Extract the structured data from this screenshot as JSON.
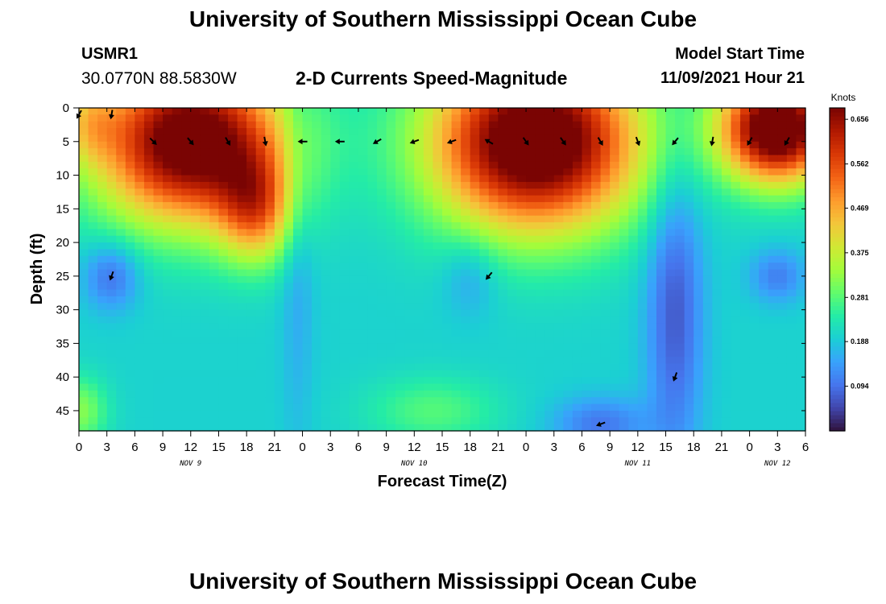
{
  "header": {
    "title": "University of Southern Mississippi Ocean Cube",
    "station": "USMR1",
    "coords": "30.0770N  88.5830W",
    "subtitle": "2-D Currents Speed-Magnitude",
    "model_start_label": "Model Start Time",
    "model_start_value": "11/09/2021 Hour 21"
  },
  "footer": {
    "title": "University of Southern Mississippi Ocean Cube"
  },
  "colors": {
    "ramp": [
      "#30123b",
      "#4145ab",
      "#4675ed",
      "#39a2fc",
      "#1bcfd4",
      "#24eca6",
      "#61fc6c",
      "#a4fc3b",
      "#d1e834",
      "#f3c63a",
      "#fe9b2d",
      "#f36315",
      "#d93806",
      "#b11901",
      "#7a0403"
    ],
    "arrow": "#000000"
  },
  "chart_data": {
    "type": "heatmap",
    "title": "2-D Currents Speed-Magnitude",
    "xlabel": "Forecast Time(Z)",
    "ylabel": "Depth (ft)",
    "x_tick_labels": [
      "0",
      "3",
      "6",
      "9",
      "12",
      "15",
      "18",
      "21",
      "0",
      "3",
      "6",
      "9",
      "12",
      "15",
      "18",
      "21",
      "0",
      "3",
      "6",
      "9",
      "12",
      "15",
      "18",
      "21",
      "0",
      "3",
      "6"
    ],
    "x_range_hours": [
      0,
      78
    ],
    "day_labels": [
      {
        "label": "NOV 9",
        "hour": 12
      },
      {
        "label": "NOV 10",
        "hour": 36
      },
      {
        "label": "NOV 11",
        "hour": 60
      },
      {
        "label": "NOV 12",
        "hour": 75
      }
    ],
    "y_tick_labels": [
      "0",
      "5",
      "10",
      "15",
      "20",
      "25",
      "30",
      "35",
      "40",
      "45"
    ],
    "y_range_ft": [
      0,
      48
    ],
    "colorbar": {
      "label": "Knots",
      "range": [
        0.0,
        0.68
      ],
      "ticks": [
        "0.656",
        "0.562",
        "0.469",
        "0.375",
        "0.281",
        "0.188",
        "0.094"
      ],
      "tick_values": [
        0.656,
        0.562,
        0.469,
        0.375,
        0.281,
        0.188,
        0.094
      ]
    },
    "speed_blobs": [
      {
        "hour": 12,
        "depth": 5,
        "hw": 10,
        "dh": 12,
        "amp": 0.55
      },
      {
        "hour": 19,
        "depth": 15,
        "hw": 4,
        "dh": 8,
        "amp": 0.25
      },
      {
        "hour": 49,
        "depth": 5,
        "hw": 11,
        "dh": 13,
        "amp": 0.58
      },
      {
        "hour": 75,
        "depth": 3,
        "hw": 6,
        "dh": 8,
        "amp": 0.58
      },
      {
        "hour": 38,
        "depth": 45,
        "hw": 7,
        "dh": 5,
        "amp": 0.08
      },
      {
        "hour": 0,
        "depth": 45,
        "hw": 3,
        "dh": 5,
        "amp": 0.12
      },
      {
        "hour": 1,
        "depth": 2,
        "hw": 3,
        "dh": 6,
        "amp": 0.12
      }
    ],
    "cold_spots": [
      {
        "hour": 3.5,
        "depth": 25,
        "hw": 3,
        "dh": 5,
        "amp": 0.11
      },
      {
        "hour": 64,
        "depth": 30,
        "hw": 3,
        "dh": 22,
        "amp": 0.13
      },
      {
        "hour": 56,
        "depth": 47,
        "hw": 5,
        "dh": 4,
        "amp": 0.1
      },
      {
        "hour": 75,
        "depth": 25,
        "hw": 3,
        "dh": 4,
        "amp": 0.09
      },
      {
        "hour": 23.5,
        "depth": 20,
        "hw": 1.8,
        "dh": 30,
        "amp": 0.05
      },
      {
        "hour": 42,
        "depth": 25,
        "hw": 3,
        "dh": 6,
        "amp": 0.06
      }
    ],
    "vectors": [
      {
        "hour": 0,
        "depth": 1,
        "dir_deg": 210
      },
      {
        "hour": 3.5,
        "depth": 1,
        "dir_deg": 190
      },
      {
        "hour": 8,
        "depth": 5,
        "dir_deg": 135
      },
      {
        "hour": 12,
        "depth": 5,
        "dir_deg": 140
      },
      {
        "hour": 16,
        "depth": 5,
        "dir_deg": 150
      },
      {
        "hour": 20,
        "depth": 5,
        "dir_deg": 170
      },
      {
        "hour": 24,
        "depth": 5,
        "dir_deg": 270
      },
      {
        "hour": 28,
        "depth": 5,
        "dir_deg": 270
      },
      {
        "hour": 32,
        "depth": 5,
        "dir_deg": 240
      },
      {
        "hour": 36,
        "depth": 5,
        "dir_deg": 250
      },
      {
        "hour": 40,
        "depth": 5,
        "dir_deg": 250
      },
      {
        "hour": 44,
        "depth": 5,
        "dir_deg": 300
      },
      {
        "hour": 48,
        "depth": 5,
        "dir_deg": 145
      },
      {
        "hour": 52,
        "depth": 5,
        "dir_deg": 145
      },
      {
        "hour": 56,
        "depth": 5,
        "dir_deg": 150
      },
      {
        "hour": 60,
        "depth": 5,
        "dir_deg": 160
      },
      {
        "hour": 64,
        "depth": 5,
        "dir_deg": 220
      },
      {
        "hour": 68,
        "depth": 5,
        "dir_deg": 190
      },
      {
        "hour": 72,
        "depth": 5,
        "dir_deg": 210
      },
      {
        "hour": 76,
        "depth": 5,
        "dir_deg": 210
      },
      {
        "hour": 3.5,
        "depth": 25,
        "dir_deg": 200
      },
      {
        "hour": 44,
        "depth": 25,
        "dir_deg": 220
      },
      {
        "hour": 64,
        "depth": 40,
        "dir_deg": 200
      },
      {
        "hour": 56,
        "depth": 47,
        "dir_deg": 250
      }
    ]
  }
}
